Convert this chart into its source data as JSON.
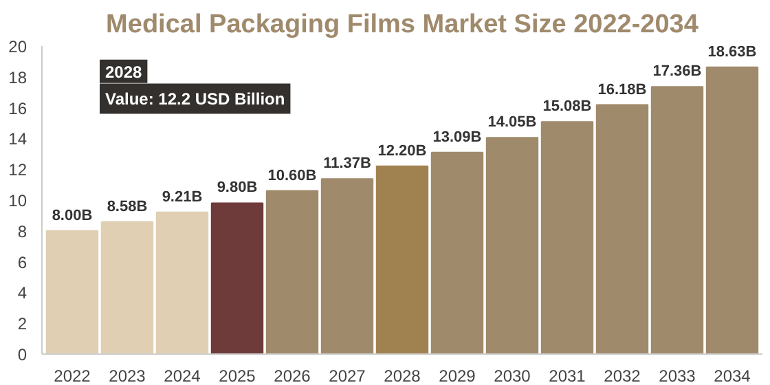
{
  "chart_data": {
    "type": "bar",
    "title": "Medical Packaging Films Market Size 2022-2034",
    "categories": [
      "2022",
      "2023",
      "2024",
      "2025",
      "2026",
      "2027",
      "2028",
      "2029",
      "2030",
      "2031",
      "2032",
      "2033",
      "2034"
    ],
    "values": [
      8.0,
      8.58,
      9.21,
      9.8,
      10.6,
      11.37,
      12.2,
      13.09,
      14.05,
      15.08,
      16.18,
      17.36,
      18.63
    ],
    "colors": [
      "#e0cfb2",
      "#e0cfb2",
      "#e0cfb2",
      "#6e3a3a",
      "#a08a6c",
      "#a08a6c",
      "#a08150",
      "#a08a6c",
      "#a08a6c",
      "#a08a6c",
      "#a08a6c",
      "#a08a6c",
      "#a08a6c"
    ],
    "value_labels": [
      "8.00B",
      "8.58B",
      "9.21B",
      "9.80B",
      "10.60B",
      "11.37B",
      "12.20B",
      "13.09B",
      "14.05B",
      "15.08B",
      "16.18B",
      "17.36B",
      "18.63B"
    ],
    "ylim": [
      0,
      20
    ],
    "yticks": [
      0,
      2,
      4,
      6,
      8,
      10,
      12,
      14,
      16,
      18,
      20
    ],
    "grid": false,
    "annotations": [
      "2028\nValue: 12.2 USD Billion"
    ]
  }
}
